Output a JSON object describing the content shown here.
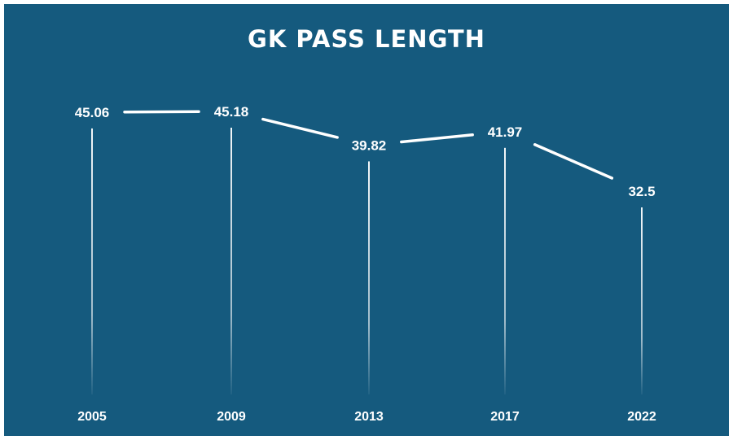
{
  "colors": {
    "background": "#155a7e",
    "foreground": "#ffffff"
  },
  "chart_data": {
    "type": "line",
    "title": "GK PASS LENGTH",
    "categories": [
      "2005",
      "2009",
      "2013",
      "2017",
      "2022"
    ],
    "values": [
      45.06,
      45.18,
      39.82,
      41.97,
      32.5
    ],
    "labels": [
      "45.06",
      "45.18",
      "39.82",
      "41.97",
      "32.5"
    ],
    "xlabel": "",
    "ylabel": "",
    "grid": false,
    "legend": "none"
  }
}
